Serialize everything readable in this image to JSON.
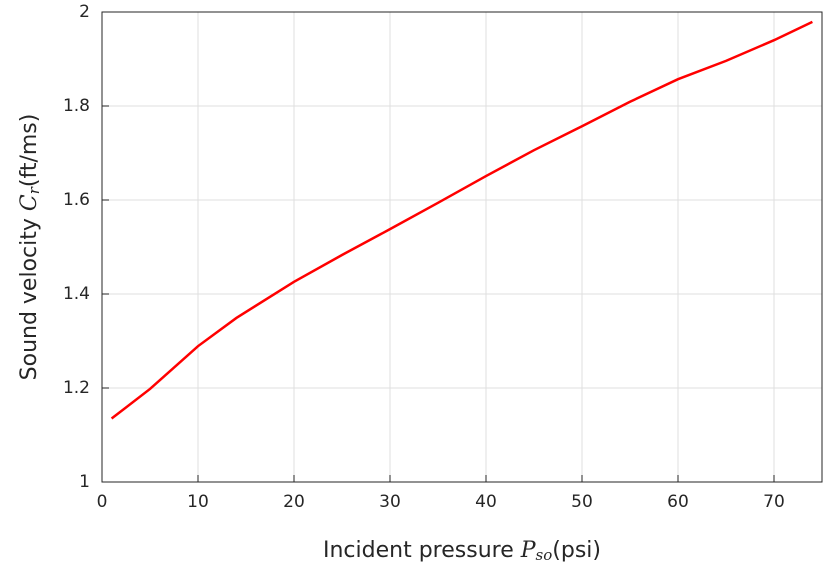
{
  "chart_data": {
    "type": "line",
    "xlabel": {
      "text": "Incident pressure ",
      "symbol": "P",
      "sub": "so",
      "unit": "(psi)"
    },
    "ylabel": {
      "text": "Sound velocity ",
      "symbol": "C",
      "sub": "r",
      "unit": "(ft/ms)"
    },
    "x": [
      1,
      5,
      10,
      14,
      20,
      25,
      30,
      35,
      40,
      45,
      50,
      55,
      60,
      65,
      70,
      74
    ],
    "series": [
      {
        "color": "#ff0000",
        "values": [
          1.135,
          1.198,
          1.289,
          1.349,
          1.426,
          1.483,
          1.538,
          1.594,
          1.651,
          1.706,
          1.757,
          1.809,
          1.857,
          1.896,
          1.94,
          1.979
        ]
      }
    ],
    "xlim": [
      0,
      75
    ],
    "xticks": [
      0,
      10,
      20,
      30,
      40,
      50,
      60,
      70
    ],
    "ylim": [
      1,
      2
    ],
    "yticks": [
      1,
      1.2,
      1.4,
      1.6,
      1.8,
      2
    ],
    "grid": true
  }
}
